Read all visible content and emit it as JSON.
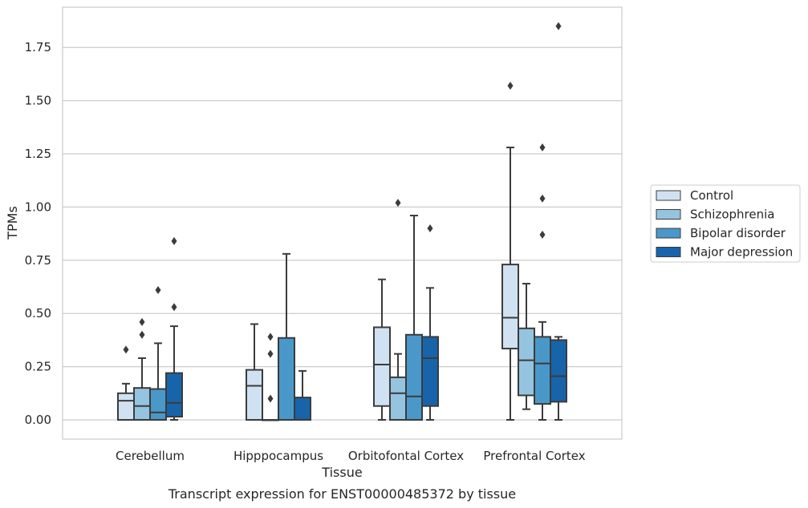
{
  "caption": "Transcript expression for ENST00000485372 by tissue",
  "chart_data": {
    "type": "box",
    "xlabel": "Tissue",
    "ylabel": "TPMs",
    "ylim": [
      -0.09,
      1.9
    ],
    "yticks": [
      0.0,
      0.25,
      0.5,
      0.75,
      1.0,
      1.25,
      1.5,
      1.75
    ],
    "ytick_labels": [
      "0.00",
      "0.25",
      "0.50",
      "0.75",
      "1.00",
      "1.25",
      "1.50",
      "1.75"
    ],
    "grid": "horizontal",
    "legend_position": "right",
    "categories": [
      "Cerebellum",
      "Hipppocampus",
      "Orbitofontal Cortex",
      "Prefrontal Cortex"
    ],
    "series": [
      {
        "name": "Control",
        "color": "#d0e1f2",
        "boxes": [
          {
            "min": 0.0,
            "q1": 0.0,
            "median": 0.09,
            "q3": 0.125,
            "max": 0.17,
            "outliers": [
              0.33
            ]
          },
          {
            "min": 0.0,
            "q1": 0.0,
            "median": 0.16,
            "q3": 0.235,
            "max": 0.45,
            "outliers": []
          },
          {
            "min": 0.0,
            "q1": 0.065,
            "median": 0.26,
            "q3": 0.435,
            "max": 0.66,
            "outliers": []
          },
          {
            "min": 0.0,
            "q1": 0.335,
            "median": 0.48,
            "q3": 0.73,
            "max": 1.28,
            "outliers": [
              1.57
            ]
          }
        ]
      },
      {
        "name": "Schizophrenia",
        "color": "#94c4df",
        "boxes": [
          {
            "min": 0.0,
            "q1": 0.0,
            "median": 0.065,
            "q3": 0.15,
            "max": 0.29,
            "outliers": [
              0.4,
              0.46
            ]
          },
          {
            "min": 0.0,
            "q1": 0.0,
            "median": 0.0,
            "q3": 0.0,
            "max": 0.0,
            "outliers": [
              0.1,
              0.31,
              0.39
            ]
          },
          {
            "min": 0.0,
            "q1": 0.0,
            "median": 0.125,
            "q3": 0.2,
            "max": 0.31,
            "outliers": [
              1.02
            ]
          },
          {
            "min": 0.05,
            "q1": 0.115,
            "median": 0.28,
            "q3": 0.43,
            "max": 0.64,
            "outliers": []
          }
        ]
      },
      {
        "name": "Bipolar disorder",
        "color": "#4a98c9",
        "boxes": [
          {
            "min": 0.0,
            "q1": 0.0,
            "median": 0.035,
            "q3": 0.145,
            "max": 0.36,
            "outliers": [
              0.61
            ]
          },
          {
            "min": 0.0,
            "q1": 0.0,
            "median": 0.0,
            "q3": 0.385,
            "max": 0.78,
            "outliers": []
          },
          {
            "min": 0.0,
            "q1": 0.0,
            "median": 0.11,
            "q3": 0.4,
            "max": 0.96,
            "outliers": []
          },
          {
            "min": 0.0,
            "q1": 0.075,
            "median": 0.265,
            "q3": 0.39,
            "max": 0.46,
            "outliers": [
              0.87,
              1.04,
              1.28
            ]
          }
        ]
      },
      {
        "name": "Major depression",
        "color": "#1764ab",
        "boxes": [
          {
            "min": 0.0,
            "q1": 0.015,
            "median": 0.08,
            "q3": 0.22,
            "max": 0.44,
            "outliers": [
              0.53,
              0.84
            ]
          },
          {
            "min": 0.0,
            "q1": 0.0,
            "median": 0.0,
            "q3": 0.105,
            "max": 0.23,
            "outliers": []
          },
          {
            "min": 0.0,
            "q1": 0.065,
            "median": 0.29,
            "q3": 0.39,
            "max": 0.62,
            "outliers": [
              0.9
            ]
          },
          {
            "min": 0.0,
            "q1": 0.085,
            "median": 0.205,
            "q3": 0.375,
            "max": 0.39,
            "outliers": [
              1.85
            ]
          }
        ]
      }
    ]
  }
}
